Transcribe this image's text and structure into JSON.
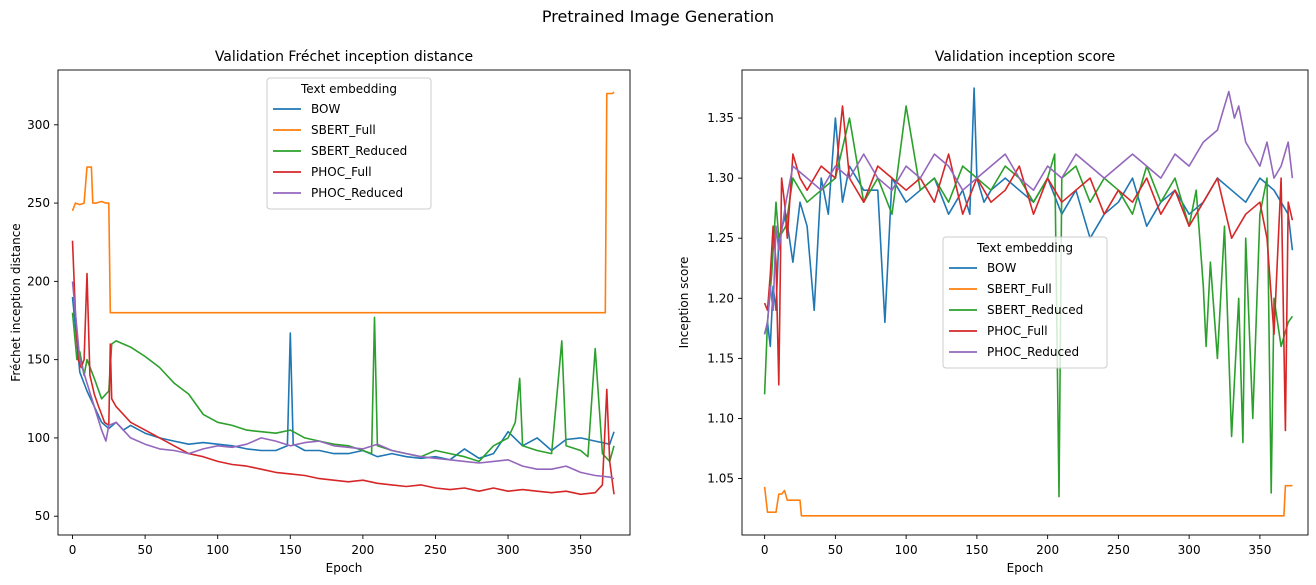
{
  "figure": {
    "suptitle": "Pretrained Image Generation"
  },
  "chart_data": [
    {
      "type": "line",
      "title": "Validation Fréchet inception distance",
      "xlabel": "Epoch",
      "ylabel": "Fréchet inception distance",
      "xlim": [
        -10,
        384
      ],
      "ylim": [
        38,
        335
      ],
      "xticks": [
        0,
        50,
        100,
        150,
        200,
        250,
        300,
        350
      ],
      "yticks": [
        50,
        100,
        150,
        200,
        250,
        300
      ],
      "legend": {
        "title": "Text embedding",
        "placement": "upper center"
      },
      "grid": false,
      "series": [
        {
          "name": "BOW",
          "color": "#1f77b4",
          "x": [
            0,
            5,
            10,
            15,
            20,
            25,
            30,
            35,
            40,
            50,
            60,
            70,
            80,
            90,
            100,
            110,
            120,
            130,
            140,
            148,
            150,
            152,
            160,
            170,
            180,
            190,
            200,
            210,
            220,
            230,
            240,
            250,
            260,
            270,
            280,
            290,
            300,
            310,
            320,
            330,
            340,
            350,
            360,
            370,
            373
          ],
          "y": [
            190,
            142,
            130,
            120,
            110,
            106,
            110,
            105,
            108,
            103,
            100,
            98,
            96,
            97,
            96,
            95,
            93,
            92,
            92,
            95,
            167,
            96,
            92,
            92,
            90,
            90,
            92,
            88,
            90,
            88,
            87,
            88,
            86,
            93,
            87,
            90,
            104,
            95,
            100,
            92,
            99,
            100,
            98,
            96,
            104
          ]
        },
        {
          "name": "SBERT_Full",
          "color": "#ff7f0e",
          "x": [
            0,
            2,
            5,
            8,
            10,
            11,
            13,
            14,
            16,
            20,
            23,
            25,
            26,
            27,
            30,
            50,
            100,
            150,
            200,
            250,
            300,
            350,
            367,
            368,
            369,
            372,
            373
          ],
          "y": [
            245,
            250,
            249,
            250,
            273,
            273,
            273,
            250,
            250,
            251,
            250,
            250,
            180,
            180,
            180,
            180,
            180,
            180,
            180,
            180,
            180,
            180,
            180,
            320,
            320,
            320,
            321
          ]
        },
        {
          "name": "SBERT_Reduced",
          "color": "#2ca02c",
          "x": [
            0,
            3,
            5,
            8,
            10,
            15,
            20,
            25,
            27,
            30,
            40,
            50,
            60,
            70,
            80,
            90,
            100,
            110,
            120,
            130,
            140,
            150,
            160,
            170,
            180,
            190,
            200,
            206,
            208,
            210,
            220,
            230,
            240,
            250,
            260,
            270,
            280,
            290,
            300,
            305,
            308,
            310,
            320,
            330,
            337,
            340,
            350,
            355,
            360,
            365,
            370,
            373
          ],
          "y": [
            180,
            150,
            155,
            140,
            150,
            138,
            125,
            130,
            160,
            162,
            158,
            152,
            145,
            135,
            128,
            115,
            110,
            108,
            105,
            104,
            103,
            105,
            100,
            98,
            96,
            95,
            92,
            90,
            177,
            95,
            92,
            90,
            88,
            92,
            90,
            88,
            85,
            95,
            100,
            110,
            138,
            95,
            92,
            90,
            162,
            95,
            92,
            88,
            157,
            90,
            85,
            95
          ]
        },
        {
          "name": "PHOC_Full",
          "color": "#d62728",
          "x": [
            0,
            2,
            4,
            6,
            8,
            10,
            12,
            15,
            18,
            20,
            22,
            25,
            26,
            27,
            30,
            40,
            50,
            60,
            70,
            80,
            90,
            100,
            110,
            120,
            130,
            140,
            150,
            160,
            170,
            180,
            190,
            200,
            210,
            220,
            230,
            240,
            250,
            260,
            270,
            280,
            290,
            300,
            310,
            320,
            330,
            340,
            350,
            360,
            365,
            368,
            370,
            373
          ],
          "y": [
            226,
            180,
            150,
            145,
            150,
            205,
            140,
            128,
            120,
            115,
            110,
            108,
            160,
            125,
            120,
            110,
            105,
            100,
            95,
            90,
            88,
            85,
            83,
            82,
            80,
            78,
            77,
            76,
            74,
            73,
            72,
            73,
            71,
            70,
            69,
            70,
            68,
            67,
            68,
            66,
            68,
            66,
            67,
            66,
            65,
            66,
            64,
            65,
            70,
            131,
            85,
            64
          ]
        },
        {
          "name": "PHOC_Reduced",
          "color": "#9467bd",
          "x": [
            0,
            2,
            5,
            10,
            15,
            20,
            23,
            25,
            30,
            40,
            50,
            60,
            70,
            80,
            90,
            100,
            110,
            120,
            130,
            140,
            150,
            160,
            170,
            180,
            190,
            200,
            210,
            220,
            230,
            240,
            250,
            260,
            270,
            280,
            290,
            300,
            310,
            320,
            330,
            340,
            350,
            360,
            370,
            373
          ],
          "y": [
            200,
            180,
            150,
            135,
            120,
            105,
            98,
            108,
            110,
            100,
            96,
            93,
            92,
            90,
            93,
            95,
            94,
            96,
            100,
            98,
            95,
            97,
            98,
            95,
            94,
            93,
            96,
            92,
            90,
            88,
            87,
            86,
            85,
            84,
            85,
            86,
            82,
            80,
            80,
            82,
            78,
            76,
            75,
            74
          ]
        }
      ]
    },
    {
      "type": "line",
      "title": "Validation inception score",
      "xlabel": "Epoch",
      "ylabel": "Inception score",
      "xlim": [
        -16,
        384
      ],
      "ylim": [
        1.003,
        1.39
      ],
      "xticks": [
        0,
        50,
        100,
        150,
        200,
        250,
        300,
        350
      ],
      "yticks": [
        1.05,
        1.1,
        1.15,
        1.2,
        1.25,
        1.3,
        1.35
      ],
      "legend": {
        "title": "Text embedding",
        "placement": "center"
      },
      "grid": false,
      "series": [
        {
          "name": "BOW",
          "color": "#1f77b4",
          "x": [
            0,
            2,
            4,
            6,
            8,
            10,
            15,
            20,
            25,
            30,
            35,
            40,
            45,
            50,
            55,
            60,
            70,
            80,
            85,
            90,
            100,
            110,
            120,
            130,
            140,
            145,
            148,
            150,
            155,
            160,
            170,
            180,
            190,
            200,
            210,
            220,
            230,
            240,
            250,
            260,
            270,
            280,
            290,
            300,
            310,
            320,
            330,
            340,
            350,
            360,
            365,
            370,
            373
          ],
          "y": [
            1.17,
            1.18,
            1.16,
            1.21,
            1.19,
            1.25,
            1.27,
            1.23,
            1.28,
            1.26,
            1.19,
            1.3,
            1.27,
            1.35,
            1.28,
            1.31,
            1.29,
            1.29,
            1.18,
            1.3,
            1.28,
            1.29,
            1.3,
            1.27,
            1.29,
            1.27,
            1.375,
            1.3,
            1.28,
            1.29,
            1.3,
            1.29,
            1.28,
            1.3,
            1.27,
            1.29,
            1.25,
            1.27,
            1.28,
            1.3,
            1.26,
            1.28,
            1.29,
            1.27,
            1.28,
            1.3,
            1.29,
            1.28,
            1.3,
            1.29,
            1.28,
            1.27,
            1.24
          ]
        },
        {
          "name": "SBERT_Full",
          "color": "#ff7f0e",
          "x": [
            0,
            2,
            4,
            6,
            8,
            10,
            12,
            14,
            16,
            18,
            20,
            25,
            26,
            27,
            30,
            50,
            100,
            150,
            200,
            250,
            300,
            350,
            367,
            368,
            370,
            373
          ],
          "y": [
            1.043,
            1.022,
            1.022,
            1.022,
            1.022,
            1.037,
            1.037,
            1.04,
            1.032,
            1.032,
            1.032,
            1.032,
            1.019,
            1.019,
            1.019,
            1.019,
            1.019,
            1.019,
            1.019,
            1.019,
            1.019,
            1.019,
            1.019,
            1.044,
            1.044,
            1.044
          ]
        },
        {
          "name": "SBERT_Reduced",
          "color": "#2ca02c",
          "x": [
            0,
            2,
            5,
            8,
            10,
            15,
            20,
            30,
            40,
            50,
            60,
            70,
            80,
            90,
            100,
            110,
            120,
            130,
            140,
            150,
            160,
            170,
            180,
            190,
            200,
            205,
            208,
            210,
            220,
            230,
            240,
            250,
            260,
            270,
            280,
            290,
            300,
            305,
            310,
            312,
            315,
            320,
            325,
            330,
            335,
            338,
            340,
            345,
            350,
            355,
            358,
            360,
            365,
            370,
            373
          ],
          "y": [
            1.12,
            1.18,
            1.22,
            1.28,
            1.25,
            1.26,
            1.3,
            1.28,
            1.29,
            1.3,
            1.35,
            1.28,
            1.3,
            1.27,
            1.36,
            1.29,
            1.3,
            1.28,
            1.31,
            1.3,
            1.29,
            1.31,
            1.3,
            1.28,
            1.3,
            1.32,
            1.035,
            1.3,
            1.31,
            1.28,
            1.3,
            1.29,
            1.27,
            1.31,
            1.28,
            1.3,
            1.26,
            1.29,
            1.21,
            1.16,
            1.23,
            1.15,
            1.26,
            1.085,
            1.2,
            1.08,
            1.25,
            1.1,
            1.27,
            1.3,
            1.038,
            1.2,
            1.16,
            1.18,
            1.185
          ]
        },
        {
          "name": "PHOC_Full",
          "color": "#d62728",
          "x": [
            0,
            2,
            4,
            6,
            8,
            10,
            12,
            14,
            16,
            20,
            25,
            30,
            40,
            50,
            55,
            60,
            70,
            80,
            90,
            100,
            110,
            120,
            130,
            140,
            150,
            160,
            170,
            180,
            190,
            200,
            210,
            220,
            230,
            240,
            250,
            260,
            270,
            280,
            290,
            300,
            310,
            320,
            330,
            340,
            350,
            355,
            360,
            365,
            368,
            370,
            373
          ],
          "y": [
            1.196,
            1.19,
            1.22,
            1.26,
            1.23,
            1.128,
            1.3,
            1.28,
            1.25,
            1.32,
            1.3,
            1.29,
            1.31,
            1.3,
            1.36,
            1.3,
            1.28,
            1.31,
            1.3,
            1.29,
            1.3,
            1.28,
            1.32,
            1.27,
            1.3,
            1.28,
            1.29,
            1.31,
            1.27,
            1.3,
            1.28,
            1.29,
            1.3,
            1.27,
            1.29,
            1.28,
            1.3,
            1.27,
            1.29,
            1.26,
            1.28,
            1.3,
            1.25,
            1.27,
            1.28,
            1.25,
            1.17,
            1.3,
            1.09,
            1.28,
            1.265
          ]
        },
        {
          "name": "PHOC_Reduced",
          "color": "#9467bd",
          "x": [
            0,
            2,
            4,
            6,
            8,
            10,
            15,
            20,
            30,
            40,
            50,
            60,
            70,
            80,
            90,
            100,
            110,
            120,
            130,
            140,
            150,
            160,
            170,
            180,
            190,
            200,
            210,
            220,
            230,
            240,
            250,
            260,
            270,
            280,
            290,
            300,
            310,
            320,
            325,
            328,
            332,
            335,
            340,
            345,
            350,
            355,
            360,
            365,
            370,
            373
          ],
          "y": [
            1.17,
            1.18,
            1.21,
            1.19,
            1.26,
            1.24,
            1.28,
            1.31,
            1.3,
            1.29,
            1.31,
            1.3,
            1.32,
            1.3,
            1.29,
            1.31,
            1.3,
            1.32,
            1.31,
            1.29,
            1.3,
            1.31,
            1.32,
            1.3,
            1.29,
            1.31,
            1.3,
            1.32,
            1.31,
            1.3,
            1.31,
            1.32,
            1.31,
            1.3,
            1.32,
            1.31,
            1.33,
            1.34,
            1.36,
            1.372,
            1.35,
            1.36,
            1.33,
            1.32,
            1.31,
            1.33,
            1.3,
            1.31,
            1.33,
            1.3
          ]
        }
      ]
    }
  ]
}
